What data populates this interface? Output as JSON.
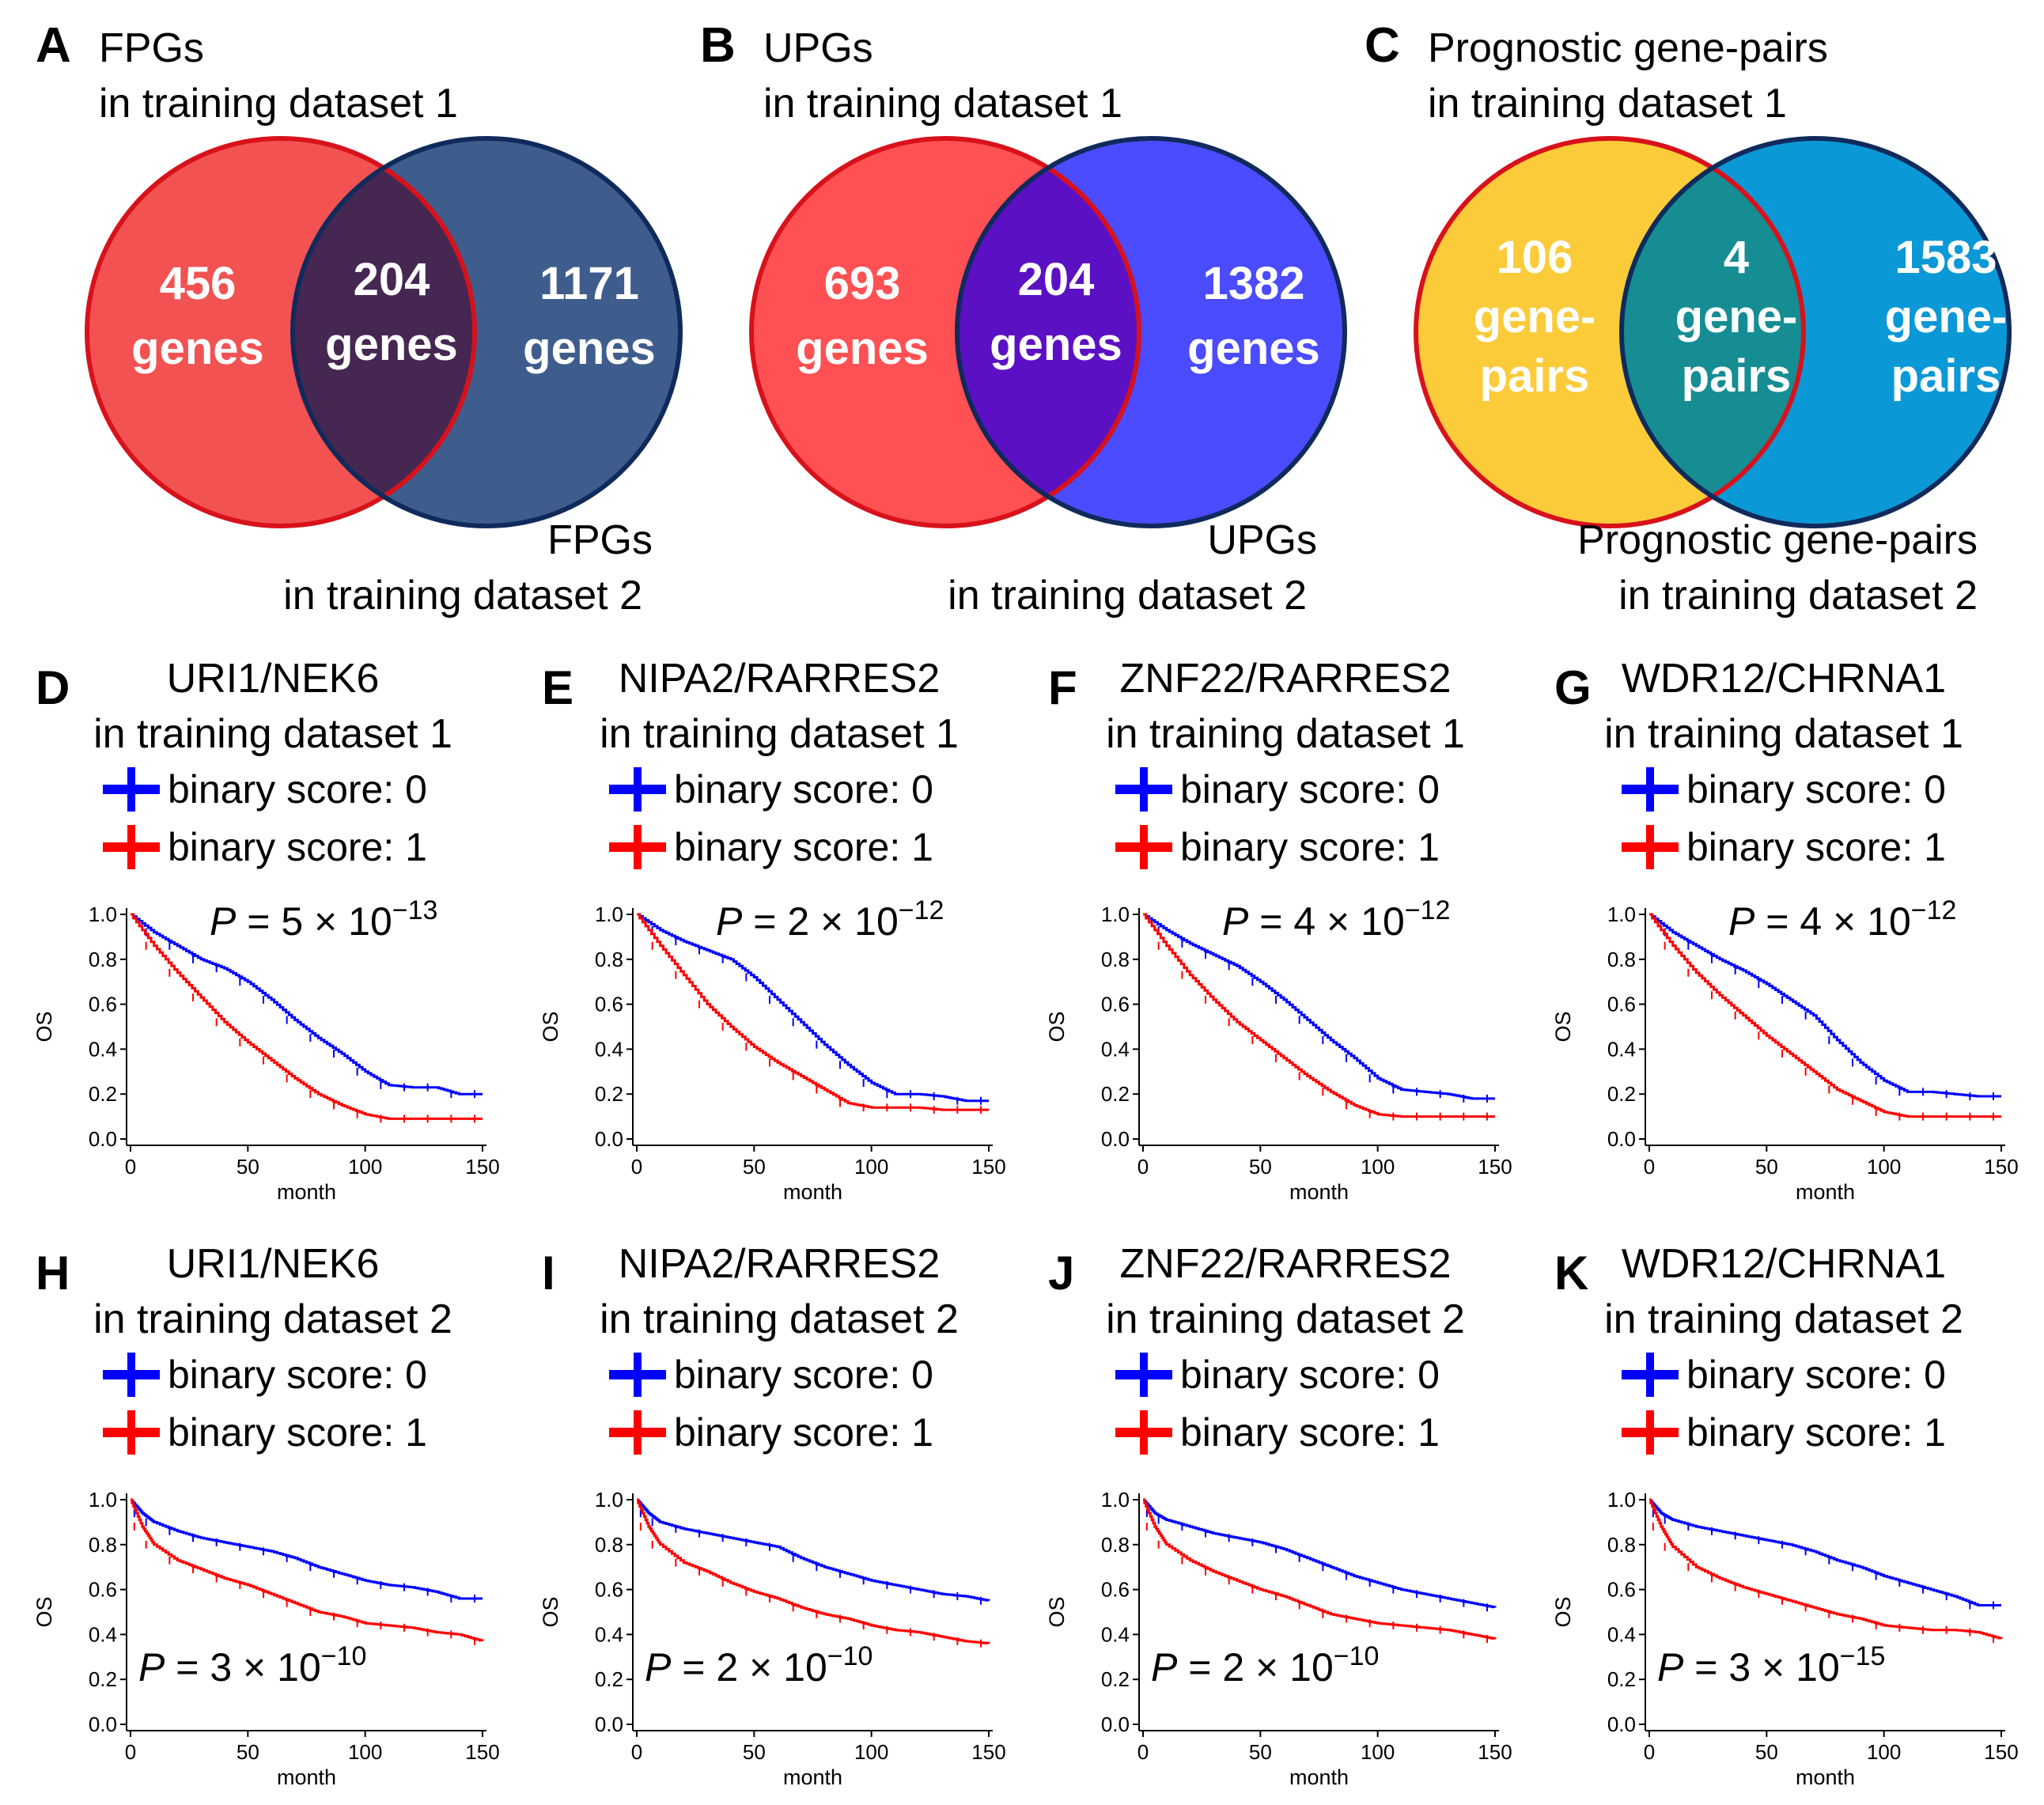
{
  "figure": {
    "venn": [
      {
        "letter": "A",
        "title_lines": [
          "FPGs",
          "in training dataset 1"
        ],
        "bottom_lines": [
          "FPGs",
          "in training dataset 2"
        ],
        "colors": {
          "left_fill": "#f25252",
          "left_stroke": "#d8111b",
          "right_fill": "#3f5d8c",
          "right_stroke": "#102a5c",
          "overlap": "#452752"
        },
        "left": [
          "456",
          "genes"
        ],
        "center": [
          "204",
          "genes"
        ],
        "right": [
          "1171",
          "genes"
        ]
      },
      {
        "letter": "B",
        "title_lines": [
          "UPGs",
          "in training dataset 1"
        ],
        "bottom_lines": [
          "UPGs",
          "in training dataset 2"
        ],
        "colors": {
          "left_fill": "#ff5053",
          "left_stroke": "#d8111b",
          "right_fill": "#4b4bff",
          "right_stroke": "#102a5c",
          "overlap": "#5c10c4"
        },
        "left": [
          "693",
          "genes"
        ],
        "center": [
          "204",
          "genes"
        ],
        "right": [
          "1382",
          "genes"
        ]
      },
      {
        "letter": "C",
        "title_lines": [
          "Prognostic gene-pairs",
          "in training dataset 1"
        ],
        "bottom_lines": [
          "Prognostic gene-pairs",
          "in training dataset 2"
        ],
        "colors": {
          "left_fill": "#fccb3a",
          "left_stroke": "#d8111b",
          "right_fill": "#0b98d6",
          "right_stroke": "#102a5c",
          "overlap": "#158d93"
        },
        "left": [
          "106",
          "gene-",
          "pairs"
        ],
        "center": [
          "4",
          "gene-",
          "pairs"
        ],
        "right": [
          "1583",
          "gene-",
          "pairs"
        ]
      }
    ],
    "legend": {
      "score0": "binary score: 0",
      "score1": "binary score: 1"
    },
    "axis_labels": {
      "x": "month",
      "y": "OS"
    },
    "p_prefix": "P",
    "p_times": " = ",
    "p_cross": "×",
    "km_panels": [
      {
        "letter": "D",
        "title": "URI1/NEK6",
        "subtitle": "in training dataset 1",
        "p_text": "5",
        "p_exp": "−13"
      },
      {
        "letter": "E",
        "title": "NIPA2/RARRES2",
        "subtitle": "in training dataset 1",
        "p_text": "2",
        "p_exp": "−12"
      },
      {
        "letter": "F",
        "title": "ZNF22/RARRES2",
        "subtitle": "in training dataset 1",
        "p_text": "4",
        "p_exp": "−12"
      },
      {
        "letter": "G",
        "title": "WDR12/CHRNA1",
        "subtitle": "in training dataset 1",
        "p_text": "4",
        "p_exp": "−12"
      },
      {
        "letter": "H",
        "title": "URI1/NEK6",
        "subtitle": "in training dataset 2",
        "p_text": "3",
        "p_exp": "−10"
      },
      {
        "letter": "I",
        "title": "NIPA2/RARRES2",
        "subtitle": "in training dataset 2",
        "p_text": "2",
        "p_exp": "−10"
      },
      {
        "letter": "J",
        "title": "ZNF22/RARRES2",
        "subtitle": "in training dataset 2",
        "p_text": "2",
        "p_exp": "−10"
      },
      {
        "letter": "K",
        "title": "WDR12/CHRNA1",
        "subtitle": "in training dataset 2",
        "p_text": "3",
        "p_exp": "−15"
      }
    ]
  },
  "chart_data": [
    {
      "type": "line",
      "panel": "D",
      "xlim": [
        0,
        150
      ],
      "ylim": [
        0.0,
        1.0
      ],
      "xlabel": "month",
      "ylabel": "OS",
      "xticks": [
        0,
        50,
        100,
        150
      ],
      "yticks": [
        0.0,
        0.2,
        0.4,
        0.6,
        0.8,
        1.0
      ],
      "colors": {
        "score0": "#0000ff",
        "score1": "#ff0000"
      },
      "series": [
        {
          "name": "binary score: 0",
          "x": [
            0,
            10,
            20,
            30,
            40,
            50,
            60,
            70,
            80,
            90,
            100,
            110,
            120,
            130,
            140,
            150
          ],
          "values": [
            1.0,
            0.92,
            0.86,
            0.8,
            0.76,
            0.7,
            0.62,
            0.53,
            0.45,
            0.38,
            0.3,
            0.24,
            0.23,
            0.23,
            0.2,
            0.2
          ]
        },
        {
          "name": "binary score: 1",
          "x": [
            0,
            10,
            20,
            30,
            40,
            50,
            60,
            70,
            80,
            90,
            100,
            110,
            120,
            130,
            140,
            150
          ],
          "values": [
            1.0,
            0.86,
            0.74,
            0.63,
            0.52,
            0.43,
            0.35,
            0.27,
            0.2,
            0.15,
            0.11,
            0.09,
            0.09,
            0.09,
            0.09,
            0.09
          ]
        }
      ]
    },
    {
      "type": "line",
      "panel": "E",
      "xlim": [
        0,
        150
      ],
      "ylim": [
        0.0,
        1.0
      ],
      "xlabel": "month",
      "ylabel": "OS",
      "xticks": [
        0,
        50,
        100,
        150
      ],
      "yticks": [
        0.0,
        0.2,
        0.4,
        0.6,
        0.8,
        1.0
      ],
      "colors": {
        "score0": "#0000ff",
        "score1": "#ff0000"
      },
      "series": [
        {
          "name": "binary score: 0",
          "x": [
            0,
            10,
            20,
            30,
            40,
            50,
            60,
            70,
            80,
            90,
            100,
            110,
            120,
            130,
            140,
            150
          ],
          "values": [
            1.0,
            0.93,
            0.88,
            0.84,
            0.8,
            0.72,
            0.62,
            0.52,
            0.42,
            0.33,
            0.25,
            0.2,
            0.2,
            0.19,
            0.17,
            0.17
          ]
        },
        {
          "name": "binary score: 1",
          "x": [
            0,
            10,
            20,
            30,
            40,
            50,
            60,
            70,
            80,
            90,
            100,
            110,
            120,
            130,
            140,
            150
          ],
          "values": [
            1.0,
            0.86,
            0.73,
            0.6,
            0.5,
            0.41,
            0.34,
            0.28,
            0.22,
            0.16,
            0.14,
            0.14,
            0.14,
            0.13,
            0.13,
            0.13
          ]
        }
      ]
    },
    {
      "type": "line",
      "panel": "F",
      "xlim": [
        0,
        150
      ],
      "ylim": [
        0.0,
        1.0
      ],
      "xlabel": "month",
      "ylabel": "OS",
      "xticks": [
        0,
        50,
        100,
        150
      ],
      "yticks": [
        0.0,
        0.2,
        0.4,
        0.6,
        0.8,
        1.0
      ],
      "colors": {
        "score0": "#0000ff",
        "score1": "#ff0000"
      },
      "series": [
        {
          "name": "binary score: 0",
          "x": [
            0,
            10,
            20,
            30,
            40,
            50,
            60,
            70,
            80,
            90,
            100,
            110,
            120,
            130,
            140,
            150
          ],
          "values": [
            1.0,
            0.93,
            0.87,
            0.82,
            0.77,
            0.7,
            0.62,
            0.53,
            0.44,
            0.36,
            0.27,
            0.22,
            0.21,
            0.2,
            0.18,
            0.18
          ]
        },
        {
          "name": "binary score: 1",
          "x": [
            0,
            10,
            20,
            30,
            40,
            50,
            60,
            70,
            80,
            90,
            100,
            110,
            120,
            130,
            140,
            150
          ],
          "values": [
            1.0,
            0.86,
            0.73,
            0.62,
            0.52,
            0.44,
            0.36,
            0.28,
            0.21,
            0.15,
            0.11,
            0.1,
            0.1,
            0.1,
            0.1,
            0.1
          ]
        }
      ]
    },
    {
      "type": "line",
      "panel": "G",
      "xlim": [
        0,
        150
      ],
      "ylim": [
        0.0,
        1.0
      ],
      "xlabel": "month",
      "ylabel": "OS",
      "xticks": [
        0,
        50,
        100,
        150
      ],
      "yticks": [
        0.0,
        0.2,
        0.4,
        0.6,
        0.8,
        1.0
      ],
      "colors": {
        "score0": "#0000ff",
        "score1": "#ff0000"
      },
      "series": [
        {
          "name": "binary score: 0",
          "x": [
            0,
            10,
            20,
            30,
            40,
            50,
            60,
            70,
            80,
            90,
            100,
            110,
            120,
            130,
            140,
            150
          ],
          "values": [
            1.0,
            0.92,
            0.86,
            0.8,
            0.75,
            0.69,
            0.62,
            0.55,
            0.44,
            0.34,
            0.26,
            0.21,
            0.21,
            0.2,
            0.19,
            0.19
          ]
        },
        {
          "name": "binary score: 1",
          "x": [
            0,
            10,
            20,
            30,
            40,
            50,
            60,
            70,
            80,
            90,
            100,
            110,
            120,
            130,
            140,
            150
          ],
          "values": [
            1.0,
            0.86,
            0.74,
            0.64,
            0.55,
            0.46,
            0.38,
            0.3,
            0.22,
            0.17,
            0.12,
            0.1,
            0.1,
            0.1,
            0.1,
            0.1
          ]
        }
      ]
    },
    {
      "type": "line",
      "panel": "H",
      "xlim": [
        0,
        150
      ],
      "ylim": [
        0.0,
        1.0
      ],
      "xlabel": "month",
      "ylabel": "OS",
      "xticks": [
        0,
        50,
        100,
        150
      ],
      "yticks": [
        0.0,
        0.2,
        0.4,
        0.6,
        0.8,
        1.0
      ],
      "colors": {
        "score0": "#0000ff",
        "score1": "#ff0000"
      },
      "series": [
        {
          "name": "binary score: 0",
          "x": [
            0,
            5,
            10,
            20,
            30,
            40,
            50,
            60,
            70,
            80,
            90,
            100,
            110,
            120,
            130,
            140,
            150
          ],
          "values": [
            1.0,
            0.94,
            0.9,
            0.86,
            0.83,
            0.81,
            0.79,
            0.77,
            0.74,
            0.7,
            0.67,
            0.64,
            0.62,
            0.61,
            0.59,
            0.56,
            0.56
          ]
        },
        {
          "name": "binary score: 1",
          "x": [
            0,
            5,
            10,
            20,
            30,
            40,
            50,
            60,
            70,
            80,
            90,
            100,
            110,
            120,
            130,
            140,
            150
          ],
          "values": [
            1.0,
            0.88,
            0.8,
            0.73,
            0.69,
            0.65,
            0.62,
            0.58,
            0.54,
            0.5,
            0.48,
            0.45,
            0.44,
            0.43,
            0.41,
            0.4,
            0.37
          ]
        }
      ]
    },
    {
      "type": "line",
      "panel": "I",
      "xlim": [
        0,
        150
      ],
      "ylim": [
        0.0,
        1.0
      ],
      "xlabel": "month",
      "ylabel": "OS",
      "xticks": [
        0,
        50,
        100,
        150
      ],
      "yticks": [
        0.0,
        0.2,
        0.4,
        0.6,
        0.8,
        1.0
      ],
      "colors": {
        "score0": "#0000ff",
        "score1": "#ff0000"
      },
      "series": [
        {
          "name": "binary score: 0",
          "x": [
            0,
            5,
            10,
            20,
            30,
            40,
            50,
            60,
            70,
            80,
            90,
            100,
            110,
            120,
            130,
            140,
            150
          ],
          "values": [
            1.0,
            0.94,
            0.9,
            0.87,
            0.85,
            0.83,
            0.81,
            0.79,
            0.74,
            0.7,
            0.67,
            0.64,
            0.62,
            0.6,
            0.58,
            0.57,
            0.55
          ]
        },
        {
          "name": "binary score: 1",
          "x": [
            0,
            5,
            10,
            20,
            30,
            40,
            50,
            60,
            70,
            80,
            90,
            100,
            110,
            120,
            130,
            140,
            150
          ],
          "values": [
            1.0,
            0.88,
            0.8,
            0.72,
            0.68,
            0.63,
            0.59,
            0.56,
            0.52,
            0.49,
            0.47,
            0.44,
            0.42,
            0.41,
            0.39,
            0.37,
            0.36
          ]
        }
      ]
    },
    {
      "type": "line",
      "panel": "J",
      "xlim": [
        0,
        150
      ],
      "ylim": [
        0.0,
        1.0
      ],
      "xlabel": "month",
      "ylabel": "OS",
      "xticks": [
        0,
        50,
        100,
        150
      ],
      "yticks": [
        0.0,
        0.2,
        0.4,
        0.6,
        0.8,
        1.0
      ],
      "colors": {
        "score0": "#0000ff",
        "score1": "#ff0000"
      },
      "series": [
        {
          "name": "binary score: 0",
          "x": [
            0,
            5,
            10,
            20,
            30,
            40,
            50,
            60,
            70,
            80,
            90,
            100,
            110,
            120,
            130,
            140,
            150
          ],
          "values": [
            1.0,
            0.94,
            0.91,
            0.88,
            0.85,
            0.83,
            0.81,
            0.78,
            0.74,
            0.7,
            0.66,
            0.63,
            0.6,
            0.58,
            0.56,
            0.54,
            0.52
          ]
        },
        {
          "name": "binary score: 1",
          "x": [
            0,
            5,
            10,
            20,
            30,
            40,
            50,
            60,
            70,
            80,
            90,
            100,
            110,
            120,
            130,
            140,
            150
          ],
          "values": [
            1.0,
            0.88,
            0.8,
            0.73,
            0.68,
            0.64,
            0.6,
            0.57,
            0.53,
            0.49,
            0.47,
            0.45,
            0.44,
            0.43,
            0.42,
            0.4,
            0.38
          ]
        }
      ]
    },
    {
      "type": "line",
      "panel": "K",
      "xlim": [
        0,
        150
      ],
      "ylim": [
        0.0,
        1.0
      ],
      "xlabel": "month",
      "ylabel": "OS",
      "xticks": [
        0,
        50,
        100,
        150
      ],
      "yticks": [
        0.0,
        0.2,
        0.4,
        0.6,
        0.8,
        1.0
      ],
      "colors": {
        "score0": "#0000ff",
        "score1": "#ff0000"
      },
      "series": [
        {
          "name": "binary score: 0",
          "x": [
            0,
            5,
            10,
            20,
            30,
            40,
            50,
            60,
            70,
            80,
            90,
            100,
            110,
            120,
            130,
            140,
            150
          ],
          "values": [
            1.0,
            0.94,
            0.91,
            0.88,
            0.86,
            0.84,
            0.82,
            0.8,
            0.77,
            0.73,
            0.7,
            0.66,
            0.63,
            0.6,
            0.57,
            0.53,
            0.53
          ]
        },
        {
          "name": "binary score: 1",
          "x": [
            0,
            5,
            10,
            20,
            30,
            40,
            50,
            60,
            70,
            80,
            90,
            100,
            110,
            120,
            130,
            140,
            150
          ],
          "values": [
            1.0,
            0.88,
            0.79,
            0.7,
            0.65,
            0.61,
            0.58,
            0.55,
            0.52,
            0.49,
            0.47,
            0.44,
            0.43,
            0.42,
            0.42,
            0.41,
            0.38
          ]
        }
      ]
    }
  ]
}
